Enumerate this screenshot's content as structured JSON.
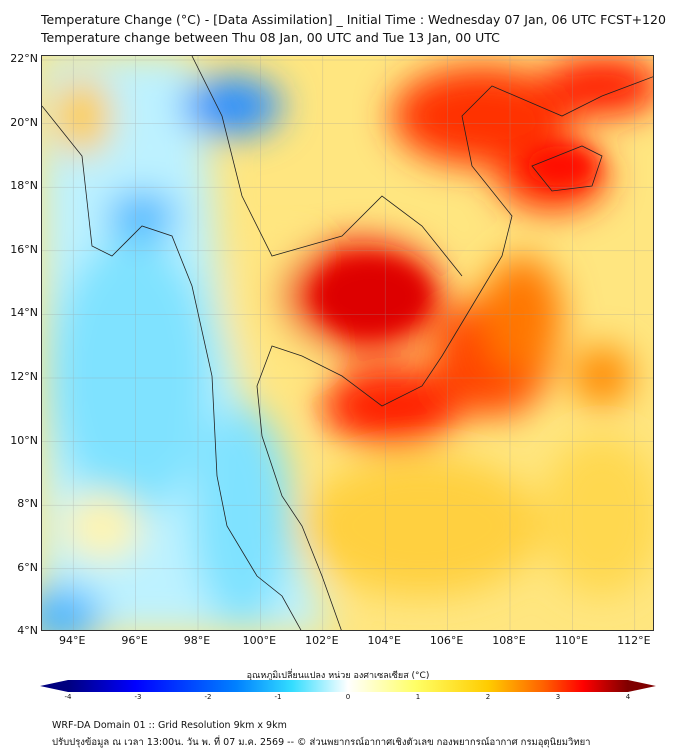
{
  "header": {
    "title_line1": "Temperature Change (°C) - [Data Assimilation] _ Initial Time : Wednesday 07 Jan, 06 UTC FCST+120",
    "title_line2": "Temperature change between Thu 08 Jan, 00 UTC and Tue 13 Jan, 00 UTC"
  },
  "map": {
    "lat_labels": [
      "22°N",
      "20°N",
      "18°N",
      "16°N",
      "14°N",
      "12°N",
      "10°N",
      "8°N",
      "6°N",
      "4°N"
    ],
    "lat_values": [
      22,
      20,
      18,
      16,
      14,
      12,
      10,
      8,
      6,
      4
    ],
    "lon_labels": [
      "94°E",
      "96°E",
      "98°E",
      "100°E",
      "102°E",
      "104°E",
      "106°E",
      "108°E",
      "110°E",
      "112°E"
    ],
    "lon_values": [
      94,
      96,
      98,
      100,
      102,
      104,
      106,
      108,
      110,
      112
    ],
    "extent": {
      "lon": [
        93,
        112.6
      ],
      "lat": [
        4,
        22.1
      ]
    }
  },
  "colorbar": {
    "title": "อุณหภูมิเปลี่ยนแปลง หน่วย องศาเซลเซียส (°C)",
    "ticks": [
      "-4",
      "-3",
      "-2",
      "-1",
      "0",
      "1",
      "2",
      "3",
      "4"
    ],
    "range": [
      -4,
      4
    ],
    "colors": [
      "#00007f",
      "#0000ff",
      "#0080ff",
      "#33ddff",
      "#e8fbff",
      "#ffffff",
      "#ffff66",
      "#ffcc00",
      "#ff8000",
      "#ff0000",
      "#7f0000"
    ]
  },
  "footer": {
    "line1": "WRF-DA Domain 01 :: Grid Resolution 9km x 9km",
    "line2": "ปรับปรุงข้อมูล ณ เวลา 13:00น. วัน พ. ที่ 07 ม.ค. 2569 -- © ส่วนพยากรณ์อากาศเชิงตัวเลข กองพยากรณ์อากาศ กรมอุตุนิยมวิทยา"
  }
}
